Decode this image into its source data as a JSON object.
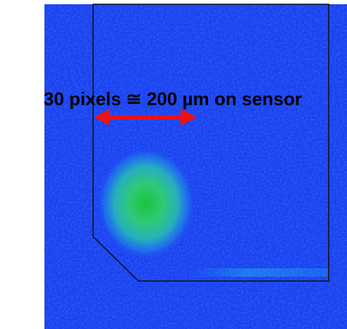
{
  "annotation": {
    "text": "30 pixels ≅ 200 µm on sensor"
  }
}
